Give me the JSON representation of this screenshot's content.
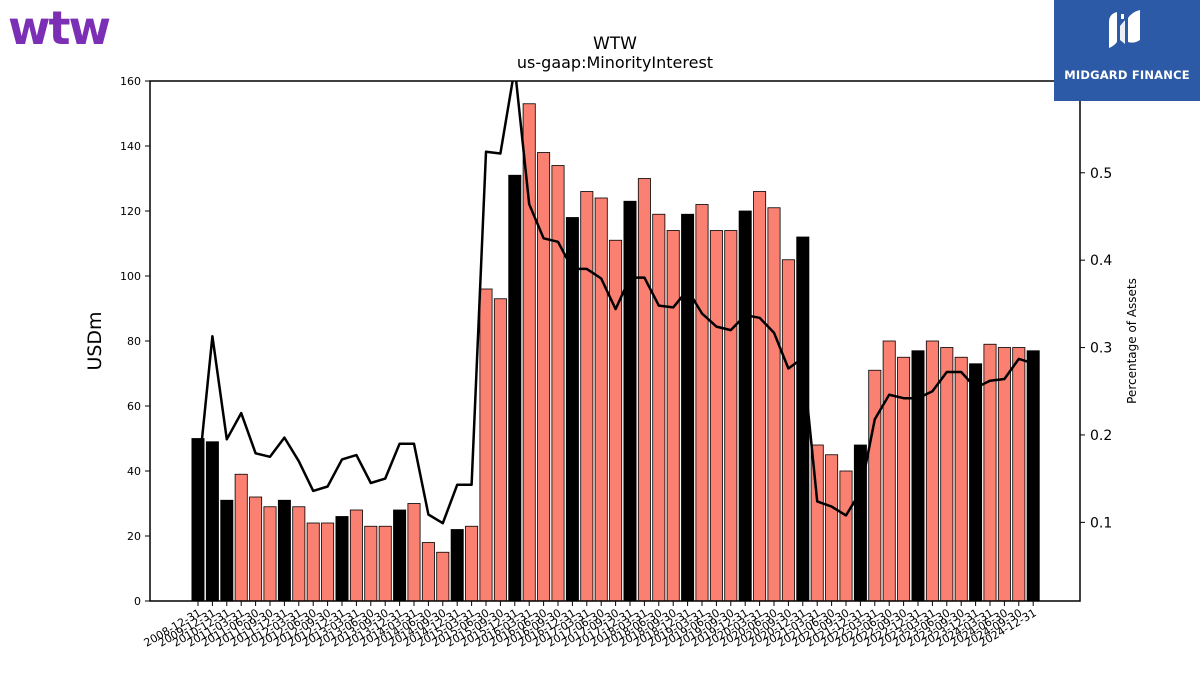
{
  "logos": {
    "left_brand": "wtw",
    "right_brand": "MIDGARD FINANCE",
    "left_color": "#7b2fb5",
    "right_bg": "#2d5aa7"
  },
  "chart_data": {
    "type": "bar",
    "title": "WTW",
    "subtitle": "us-gaap:MinorityInterest",
    "ylabel": "USDm",
    "y2label": "Percentage of Assets",
    "ylim": [
      0,
      160
    ],
    "y2lim": [
      0.01,
      0.605
    ],
    "yticks": [
      0,
      20,
      40,
      60,
      80,
      100,
      120,
      140,
      160
    ],
    "y2ticks": [
      0.1,
      0.2,
      0.3,
      0.4,
      0.5
    ],
    "colors": {
      "annual": "#000000",
      "quarter": "#fa8072",
      "line": "#000000"
    },
    "categories": [
      "2008-12-31",
      "2009-12-31",
      "2010-12-31",
      "2011-03-31",
      "2011-06-30",
      "2011-09-30",
      "2011-12-31",
      "2012-03-31",
      "2012-06-30",
      "2012-09-30",
      "2012-12-31",
      "2013-03-31",
      "2013-06-30",
      "2013-09-30",
      "2013-12-31",
      "2014-03-31",
      "2014-06-30",
      "2014-09-30",
      "2014-12-31",
      "2015-03-31",
      "2015-06-30",
      "2015-09-30",
      "2015-12-31",
      "2016-03-31",
      "2016-06-30",
      "2016-09-30",
      "2016-12-31",
      "2017-03-31",
      "2017-06-30",
      "2017-09-30",
      "2017-12-31",
      "2018-03-31",
      "2018-06-30",
      "2018-09-30",
      "2018-12-31",
      "2019-03-31",
      "2019-06-30",
      "2019-09-30",
      "2019-12-31",
      "2020-03-31",
      "2020-06-30",
      "2020-09-30",
      "2020-12-31",
      "2021-03-31",
      "2021-06-30",
      "2021-09-30",
      "2021-12-31",
      "2022-03-31",
      "2022-06-30",
      "2022-09-30",
      "2022-12-31",
      "2023-03-31",
      "2023-06-30",
      "2023-09-30",
      "2023-12-31",
      "2024-03-31",
      "2024-06-30",
      "2024-09-30",
      "2024-12-31"
    ],
    "values": [
      50,
      49,
      31,
      39,
      32,
      29,
      31,
      29,
      24,
      24,
      26,
      28,
      23,
      23,
      28,
      30,
      18,
      15,
      22,
      23,
      96,
      93,
      131,
      153,
      138,
      134,
      118,
      126,
      124,
      111,
      123,
      130,
      119,
      114,
      119,
      122,
      114,
      114,
      120,
      126,
      121,
      105,
      112,
      48,
      45,
      40,
      48,
      71,
      80,
      75,
      77,
      80,
      78,
      75,
      73,
      79,
      78,
      78,
      77
    ],
    "annual": [
      1,
      1,
      1,
      0,
      0,
      0,
      1,
      0,
      0,
      0,
      1,
      0,
      0,
      0,
      1,
      0,
      0,
      0,
      1,
      0,
      0,
      0,
      1,
      0,
      0,
      0,
      1,
      0,
      0,
      0,
      1,
      0,
      0,
      0,
      1,
      0,
      0,
      0,
      1,
      0,
      0,
      0,
      1,
      0,
      0,
      0,
      1,
      0,
      0,
      0,
      1,
      0,
      0,
      0,
      1,
      0,
      0,
      0,
      1
    ],
    "pct_assets": [
      0.15,
      0.313,
      0.195,
      0.225,
      0.179,
      0.175,
      0.197,
      0.17,
      0.136,
      0.141,
      0.172,
      0.177,
      0.145,
      0.15,
      0.19,
      0.19,
      0.109,
      0.099,
      0.143,
      0.143,
      0.524,
      0.522,
      0.62,
      0.464,
      0.425,
      0.421,
      0.39,
      0.39,
      0.379,
      0.344,
      0.38,
      0.38,
      0.348,
      0.346,
      0.366,
      0.339,
      0.324,
      0.32,
      0.337,
      0.334,
      0.317,
      0.276,
      0.288,
      0.124,
      0.118,
      0.108,
      0.135,
      0.218,
      0.246,
      0.242,
      0.242,
      0.25,
      0.272,
      0.272,
      0.254,
      0.262,
      0.264,
      0.287,
      0.282
    ]
  }
}
